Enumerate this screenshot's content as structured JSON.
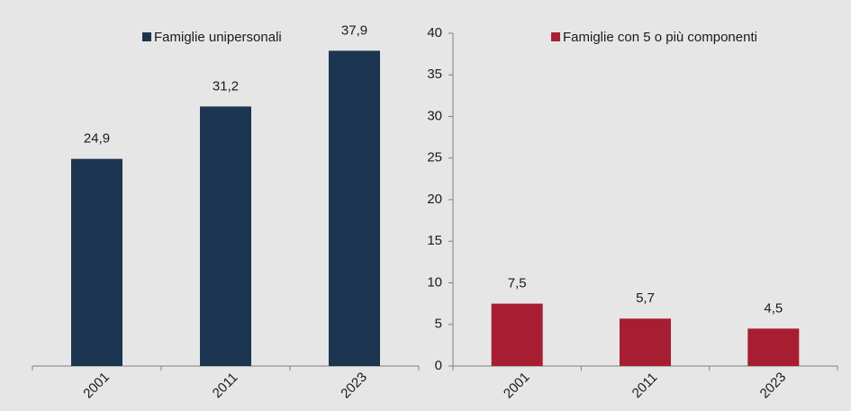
{
  "chart_data": [
    {
      "type": "bar",
      "categories": [
        "2001",
        "2011",
        "2023"
      ],
      "series": [
        {
          "name": "Famiglie unipersonali",
          "color": "#1c3550",
          "values": [
            24.9,
            31.2,
            37.9
          ],
          "value_labels": [
            "24,9",
            "31,2",
            "37,9"
          ]
        }
      ],
      "ylim": [
        0,
        40
      ]
    },
    {
      "type": "bar",
      "categories": [
        "2001",
        "2011",
        "2023"
      ],
      "series": [
        {
          "name": "Famiglie con 5 o più componenti",
          "color": "#a71e32",
          "values": [
            7.5,
            5.7,
            4.5
          ],
          "value_labels": [
            "7,5",
            "5,7",
            "4,5"
          ]
        }
      ],
      "ylim": [
        0,
        40
      ],
      "yticks": [
        0,
        5,
        10,
        15,
        20,
        25,
        30,
        35,
        40
      ]
    }
  ]
}
